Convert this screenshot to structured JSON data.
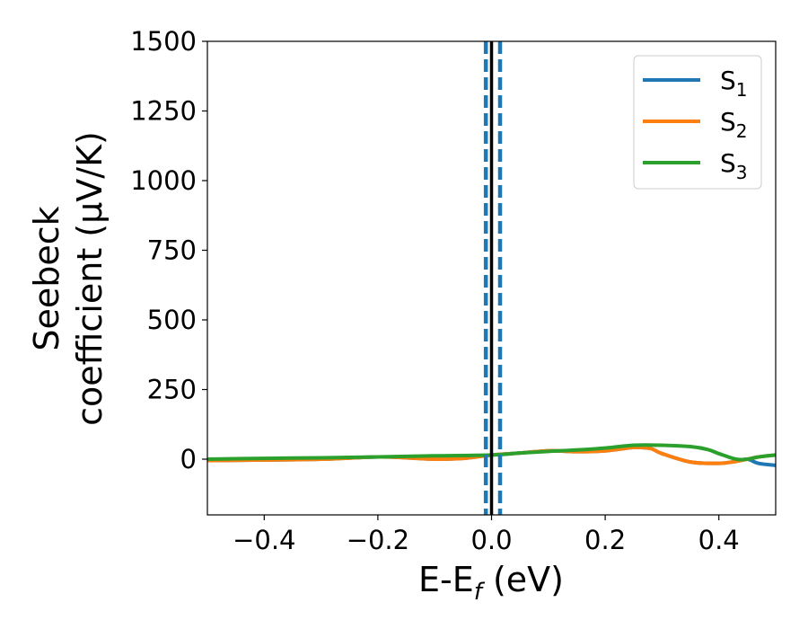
{
  "chart_data": {
    "type": "line",
    "title": "",
    "xlabel": "E-E",
    "xlabel_sub": "f",
    "xlabel_unit": " (eV)",
    "ylabel_line1": "Seebeck",
    "ylabel_line2": "coefficient  (μV/K)",
    "xlim": [
      -0.5,
      0.5
    ],
    "ylim": [
      -200,
      1500
    ],
    "xticks": [
      -0.4,
      -0.2,
      0.0,
      0.2,
      0.4
    ],
    "xtick_labels": [
      "−0.4",
      "−0.2",
      "0.0",
      "0.2",
      "0.4"
    ],
    "yticks": [
      0,
      250,
      500,
      750,
      1000,
      1250,
      1500
    ],
    "ytick_labels": [
      "0",
      "250",
      "500",
      "750",
      "1000",
      "1250",
      "1500"
    ],
    "grid": false,
    "legend_position": "top-right",
    "series": [
      {
        "name": "S",
        "sub": "1",
        "color": "#1f77b4",
        "x": [
          -0.5,
          -0.4,
          -0.3,
          -0.2,
          -0.15,
          -0.1,
          -0.05,
          0.0,
          0.05,
          0.1,
          0.15,
          0.2,
          0.25,
          0.28,
          0.3,
          0.35,
          0.4,
          0.43,
          0.45,
          0.47,
          0.5
        ],
        "y": [
          -5,
          -3,
          0,
          8,
          5,
          0,
          3,
          15,
          22,
          30,
          27,
          30,
          42,
          38,
          20,
          -10,
          -15,
          -8,
          0,
          -15,
          -22
        ]
      },
      {
        "name": "S",
        "sub": "2",
        "color": "#ff7f0e",
        "x": [
          -0.5,
          -0.4,
          -0.3,
          -0.2,
          -0.15,
          -0.1,
          -0.05,
          0.0,
          0.05,
          0.1,
          0.15,
          0.2,
          0.25,
          0.28,
          0.3,
          0.35,
          0.4,
          0.43,
          0.45,
          0.47,
          0.5
        ],
        "y": [
          -5,
          -3,
          0,
          8,
          5,
          0,
          3,
          15,
          22,
          30,
          27,
          30,
          42,
          38,
          20,
          -10,
          -15,
          -8,
          0,
          8,
          15
        ]
      },
      {
        "name": "S",
        "sub": "3",
        "color": "#2ca02c",
        "x": [
          -0.5,
          -0.4,
          -0.3,
          -0.2,
          -0.1,
          0.0,
          0.05,
          0.1,
          0.15,
          0.2,
          0.25,
          0.3,
          0.35,
          0.38,
          0.4,
          0.43,
          0.45,
          0.47,
          0.5
        ],
        "y": [
          0,
          3,
          5,
          8,
          12,
          15,
          22,
          28,
          33,
          40,
          50,
          50,
          45,
          35,
          20,
          0,
          0,
          8,
          15
        ]
      }
    ],
    "vlines": [
      {
        "x": 0.0,
        "color": "#000000",
        "style": "solid"
      },
      {
        "x": -0.01,
        "color": "#1f77b4",
        "style": "dashed"
      },
      {
        "x": 0.015,
        "color": "#1f77b4",
        "style": "dashed"
      }
    ]
  }
}
